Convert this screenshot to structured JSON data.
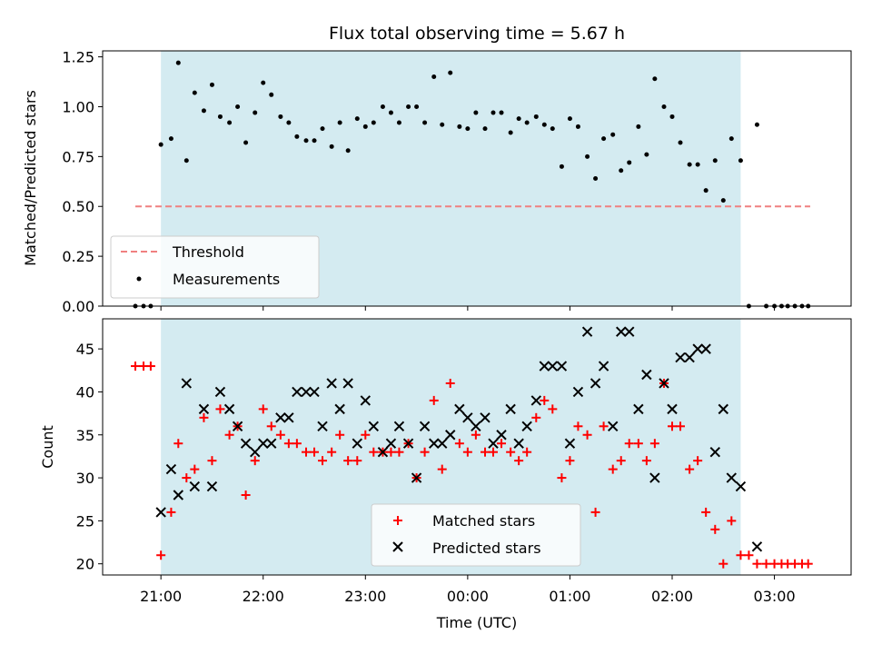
{
  "chart_data": {
    "title": "Flux total observing time = 5.67 h",
    "xlabel": "Time (UTC)",
    "xticks": [
      {
        "t": 21.0,
        "label": "21:00"
      },
      {
        "t": 22.0,
        "label": "22:00"
      },
      {
        "t": 23.0,
        "label": "23:00"
      },
      {
        "t": 24.0,
        "label": "00:00"
      },
      {
        "t": 25.0,
        "label": "01:00"
      },
      {
        "t": 26.0,
        "label": "02:00"
      },
      {
        "t": 27.0,
        "label": "03:00"
      }
    ],
    "xlim": [
      20.43,
      27.75
    ],
    "shaded_interval": [
      21.0,
      26.67
    ],
    "colors": {
      "shade": "#d4ebf1",
      "threshold": "#f08080",
      "matched": "#ff0000",
      "predicted": "#000000",
      "measurement": "#000000"
    },
    "panels": [
      {
        "type": "scatter",
        "ylabel": "Matched/Predicted stars",
        "ylim": [
          0,
          1.28
        ],
        "yticks": [
          "0.00",
          "0.25",
          "0.50",
          "0.75",
          "1.00",
          "1.25"
        ],
        "legend_position": "lower-left",
        "legend": [
          {
            "label": "Threshold",
            "marker": "dashed-line"
          },
          {
            "label": "Measurements",
            "marker": "dot"
          }
        ],
        "threshold": {
          "value": 0.5,
          "x_range": [
            20.75,
            27.35
          ]
        },
        "series": [
          {
            "name": "Measurements",
            "points": [
              [
                20.75,
                0
              ],
              [
                20.83,
                0
              ],
              [
                20.9,
                0
              ],
              [
                21.0,
                0.81
              ],
              [
                21.1,
                0.84
              ],
              [
                21.17,
                1.22
              ],
              [
                21.25,
                0.73
              ],
              [
                21.33,
                1.07
              ],
              [
                21.42,
                0.98
              ],
              [
                21.5,
                1.11
              ],
              [
                21.58,
                0.95
              ],
              [
                21.67,
                0.92
              ],
              [
                21.75,
                1.0
              ],
              [
                21.83,
                0.82
              ],
              [
                21.92,
                0.97
              ],
              [
                22.0,
                1.12
              ],
              [
                22.08,
                1.06
              ],
              [
                22.17,
                0.95
              ],
              [
                22.25,
                0.92
              ],
              [
                22.33,
                0.85
              ],
              [
                22.42,
                0.83
              ],
              [
                22.5,
                0.83
              ],
              [
                22.58,
                0.89
              ],
              [
                22.67,
                0.8
              ],
              [
                22.75,
                0.92
              ],
              [
                22.83,
                0.78
              ],
              [
                22.92,
                0.94
              ],
              [
                23.0,
                0.9
              ],
              [
                23.08,
                0.92
              ],
              [
                23.17,
                1.0
              ],
              [
                23.25,
                0.97
              ],
              [
                23.33,
                0.92
              ],
              [
                23.42,
                1.0
              ],
              [
                23.5,
                1.0
              ],
              [
                23.58,
                0.92
              ],
              [
                23.67,
                1.15
              ],
              [
                23.75,
                0.91
              ],
              [
                23.83,
                1.17
              ],
              [
                23.92,
                0.9
              ],
              [
                24.0,
                0.89
              ],
              [
                24.08,
                0.97
              ],
              [
                24.17,
                0.89
              ],
              [
                24.25,
                0.97
              ],
              [
                24.33,
                0.97
              ],
              [
                24.42,
                0.87
              ],
              [
                24.5,
                0.94
              ],
              [
                24.58,
                0.92
              ],
              [
                24.67,
                0.95
              ],
              [
                24.75,
                0.91
              ],
              [
                24.83,
                0.89
              ],
              [
                24.92,
                0.7
              ],
              [
                25.0,
                0.94
              ],
              [
                25.08,
                0.9
              ],
              [
                25.17,
                0.75
              ],
              [
                25.25,
                0.64
              ],
              [
                25.33,
                0.84
              ],
              [
                25.42,
                0.86
              ],
              [
                25.5,
                0.68
              ],
              [
                25.58,
                0.72
              ],
              [
                25.67,
                0.9
              ],
              [
                25.75,
                0.76
              ],
              [
                25.83,
                1.14
              ],
              [
                25.92,
                1.0
              ],
              [
                26.0,
                0.95
              ],
              [
                26.08,
                0.82
              ],
              [
                26.17,
                0.71
              ],
              [
                26.25,
                0.71
              ],
              [
                26.33,
                0.58
              ],
              [
                26.42,
                0.73
              ],
              [
                26.5,
                0.53
              ],
              [
                26.58,
                0.84
              ],
              [
                26.67,
                0.73
              ],
              [
                26.75,
                0
              ],
              [
                26.83,
                0.91
              ],
              [
                26.92,
                0
              ],
              [
                27.0,
                0
              ],
              [
                27.07,
                0
              ],
              [
                27.13,
                0
              ],
              [
                27.2,
                0
              ],
              [
                27.27,
                0
              ],
              [
                27.33,
                0
              ]
            ]
          }
        ]
      },
      {
        "type": "scatter",
        "ylabel": "Count",
        "ylim": [
          18.7,
          48.5
        ],
        "yticks": [
          "20",
          "25",
          "30",
          "35",
          "40",
          "45"
        ],
        "legend_position": "lower-center",
        "legend": [
          {
            "label": "Matched stars",
            "marker": "plus"
          },
          {
            "label": "Predicted stars",
            "marker": "cross"
          }
        ],
        "series": [
          {
            "name": "Matched stars",
            "marker": "plus",
            "points": [
              [
                20.75,
                43
              ],
              [
                20.83,
                43
              ],
              [
                20.9,
                43
              ],
              [
                21.0,
                21
              ],
              [
                21.1,
                26
              ],
              [
                21.17,
                34
              ],
              [
                21.25,
                30
              ],
              [
                21.33,
                31
              ],
              [
                21.42,
                37
              ],
              [
                21.5,
                32
              ],
              [
                21.58,
                38
              ],
              [
                21.67,
                35
              ],
              [
                21.75,
                36
              ],
              [
                21.83,
                28
              ],
              [
                21.92,
                32
              ],
              [
                22.0,
                38
              ],
              [
                22.08,
                36
              ],
              [
                22.17,
                35
              ],
              [
                22.25,
                34
              ],
              [
                22.33,
                34
              ],
              [
                22.42,
                33
              ],
              [
                22.5,
                33
              ],
              [
                22.58,
                32
              ],
              [
                22.67,
                33
              ],
              [
                22.75,
                35
              ],
              [
                22.83,
                32
              ],
              [
                22.92,
                32
              ],
              [
                23.0,
                35
              ],
              [
                23.08,
                33
              ],
              [
                23.17,
                33
              ],
              [
                23.25,
                33
              ],
              [
                23.33,
                33
              ],
              [
                23.42,
                34
              ],
              [
                23.5,
                30
              ],
              [
                23.58,
                33
              ],
              [
                23.67,
                39
              ],
              [
                23.75,
                31
              ],
              [
                23.83,
                41
              ],
              [
                23.92,
                34
              ],
              [
                24.0,
                33
              ],
              [
                24.08,
                35
              ],
              [
                24.17,
                33
              ],
              [
                24.25,
                33
              ],
              [
                24.33,
                34
              ],
              [
                24.42,
                33
              ],
              [
                24.5,
                32
              ],
              [
                24.58,
                33
              ],
              [
                24.67,
                37
              ],
              [
                24.75,
                39
              ],
              [
                24.83,
                38
              ],
              [
                24.92,
                30
              ],
              [
                25.0,
                32
              ],
              [
                25.08,
                36
              ],
              [
                25.17,
                35
              ],
              [
                25.25,
                26
              ],
              [
                25.33,
                36
              ],
              [
                25.42,
                31
              ],
              [
                25.5,
                32
              ],
              [
                25.58,
                34
              ],
              [
                25.67,
                34
              ],
              [
                25.75,
                32
              ],
              [
                25.83,
                34
              ],
              [
                25.92,
                41
              ],
              [
                26.0,
                36
              ],
              [
                26.08,
                36
              ],
              [
                26.17,
                31
              ],
              [
                26.25,
                32
              ],
              [
                26.33,
                26
              ],
              [
                26.42,
                24
              ],
              [
                26.5,
                20
              ],
              [
                26.58,
                25
              ],
              [
                26.67,
                21
              ],
              [
                26.75,
                21
              ],
              [
                26.83,
                20
              ],
              [
                26.92,
                20
              ],
              [
                27.0,
                20
              ],
              [
                27.07,
                20
              ],
              [
                27.13,
                20
              ],
              [
                27.2,
                20
              ],
              [
                27.27,
                20
              ],
              [
                27.33,
                20
              ]
            ]
          },
          {
            "name": "Predicted stars",
            "marker": "cross",
            "points": [
              [
                21.0,
                26
              ],
              [
                21.1,
                31
              ],
              [
                21.17,
                28
              ],
              [
                21.25,
                41
              ],
              [
                21.33,
                29
              ],
              [
                21.42,
                38
              ],
              [
                21.5,
                29
              ],
              [
                21.58,
                40
              ],
              [
                21.67,
                38
              ],
              [
                21.75,
                36
              ],
              [
                21.83,
                34
              ],
              [
                21.92,
                33
              ],
              [
                22.0,
                34
              ],
              [
                22.08,
                34
              ],
              [
                22.17,
                37
              ],
              [
                22.25,
                37
              ],
              [
                22.33,
                40
              ],
              [
                22.42,
                40
              ],
              [
                22.5,
                40
              ],
              [
                22.58,
                36
              ],
              [
                22.67,
                41
              ],
              [
                22.75,
                38
              ],
              [
                22.83,
                41
              ],
              [
                22.92,
                34
              ],
              [
                23.0,
                39
              ],
              [
                23.08,
                36
              ],
              [
                23.17,
                33
              ],
              [
                23.25,
                34
              ],
              [
                23.33,
                36
              ],
              [
                23.42,
                34
              ],
              [
                23.5,
                30
              ],
              [
                23.58,
                36
              ],
              [
                23.67,
                34
              ],
              [
                23.75,
                34
              ],
              [
                23.83,
                35
              ],
              [
                23.92,
                38
              ],
              [
                24.0,
                37
              ],
              [
                24.08,
                36
              ],
              [
                24.17,
                37
              ],
              [
                24.25,
                34
              ],
              [
                24.33,
                35
              ],
              [
                24.42,
                38
              ],
              [
                24.5,
                34
              ],
              [
                24.58,
                36
              ],
              [
                24.67,
                39
              ],
              [
                24.75,
                43
              ],
              [
                24.83,
                43
              ],
              [
                24.92,
                43
              ],
              [
                25.0,
                34
              ],
              [
                25.08,
                40
              ],
              [
                25.17,
                47
              ],
              [
                25.25,
                41
              ],
              [
                25.33,
                43
              ],
              [
                25.42,
                36
              ],
              [
                25.5,
                47
              ],
              [
                25.58,
                47
              ],
              [
                25.67,
                38
              ],
              [
                25.75,
                42
              ],
              [
                25.83,
                30
              ],
              [
                25.92,
                41
              ],
              [
                26.0,
                38
              ],
              [
                26.08,
                44
              ],
              [
                26.17,
                44
              ],
              [
                26.25,
                45
              ],
              [
                26.33,
                45
              ],
              [
                26.42,
                33
              ],
              [
                26.5,
                38
              ],
              [
                26.58,
                30
              ],
              [
                26.67,
                29
              ],
              [
                26.83,
                22
              ]
            ]
          }
        ]
      }
    ]
  }
}
